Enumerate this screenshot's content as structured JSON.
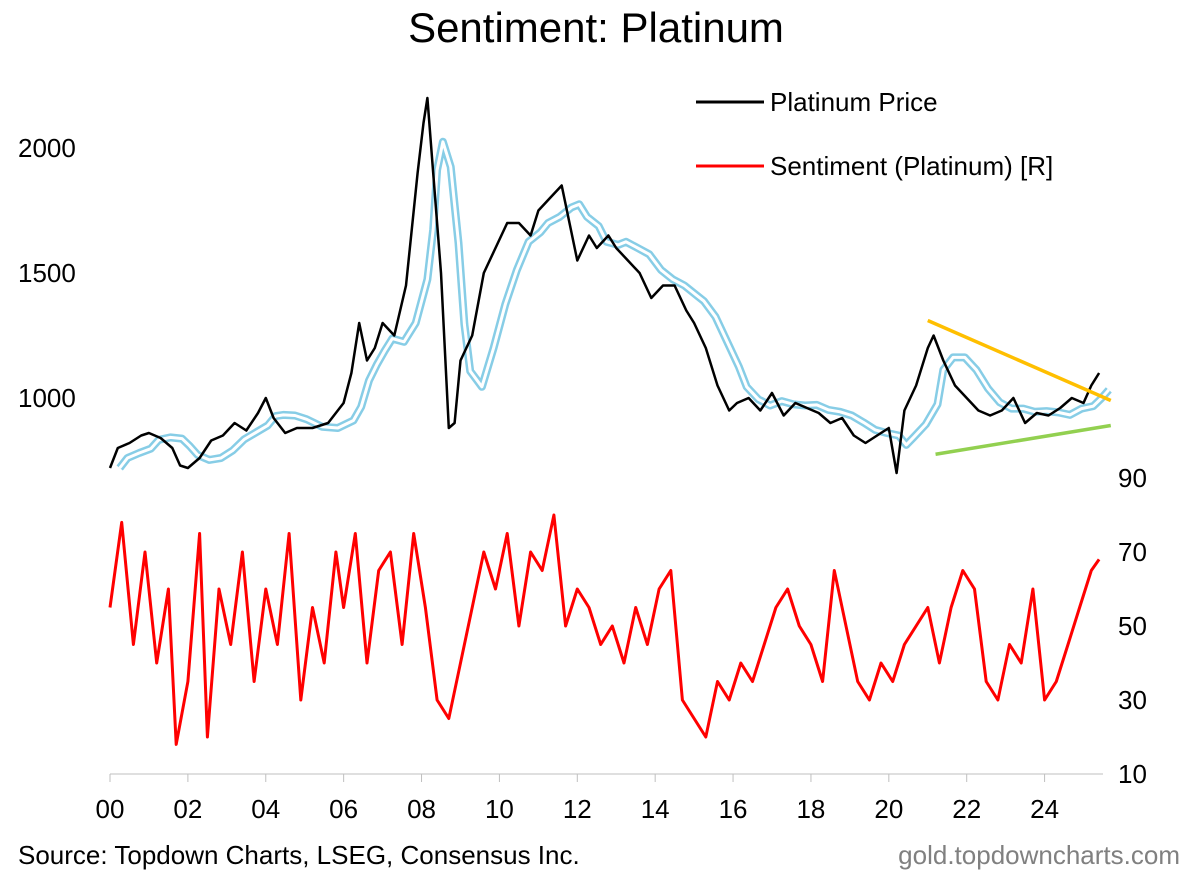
{
  "chart_data": {
    "type": "line",
    "title": "Sentiment: Platinum",
    "x_tick_labels": [
      "00",
      "02",
      "04",
      "06",
      "08",
      "10",
      "12",
      "14",
      "16",
      "18",
      "20",
      "22",
      "24"
    ],
    "x_range": [
      2000,
      2025.5
    ],
    "left_axis": {
      "ticks": [
        "1000",
        "1500",
        "2000"
      ],
      "tick_values": [
        1000,
        1500,
        2000
      ],
      "range": [
        400,
        2200
      ]
    },
    "right_axis": {
      "ticks": [
        "10",
        "30",
        "50",
        "70",
        "90"
      ],
      "tick_values": [
        10,
        30,
        50,
        70,
        90
      ],
      "range": [
        10,
        90
      ]
    },
    "legend": [
      "Platinum Price",
      "Sentiment (Platinum) [R]"
    ],
    "series": [
      {
        "name": "Platinum Price",
        "axis": "left",
        "color": "#000000",
        "x": [
          2000.0,
          2000.2,
          2000.5,
          2000.8,
          2001.0,
          2001.3,
          2001.6,
          2001.8,
          2002.0,
          2002.3,
          2002.6,
          2002.9,
          2003.2,
          2003.5,
          2003.8,
          2004.0,
          2004.2,
          2004.5,
          2004.8,
          2005.2,
          2005.6,
          2006.0,
          2006.2,
          2006.4,
          2006.6,
          2006.8,
          2007.0,
          2007.3,
          2007.6,
          2007.9,
          2008.05,
          2008.15,
          2008.3,
          2008.5,
          2008.7,
          2008.85,
          2009.0,
          2009.3,
          2009.6,
          2009.9,
          2010.2,
          2010.5,
          2010.8,
          2011.0,
          2011.3,
          2011.6,
          2011.8,
          2012.0,
          2012.3,
          2012.5,
          2012.8,
          2013.0,
          2013.3,
          2013.6,
          2013.9,
          2014.2,
          2014.5,
          2014.8,
          2015.0,
          2015.3,
          2015.6,
          2015.9,
          2016.1,
          2016.4,
          2016.7,
          2017.0,
          2017.3,
          2017.6,
          2017.9,
          2018.2,
          2018.5,
          2018.8,
          2019.1,
          2019.4,
          2019.7,
          2020.0,
          2020.2,
          2020.4,
          2020.7,
          2021.0,
          2021.15,
          2021.4,
          2021.7,
          2022.0,
          2022.3,
          2022.6,
          2022.9,
          2023.2,
          2023.5,
          2023.8,
          2024.1,
          2024.4,
          2024.7,
          2025.0,
          2025.2,
          2025.4
        ],
        "y": [
          720,
          800,
          820,
          850,
          860,
          840,
          800,
          730,
          720,
          760,
          830,
          850,
          900,
          870,
          940,
          1000,
          920,
          860,
          880,
          880,
          900,
          980,
          1100,
          1300,
          1150,
          1200,
          1300,
          1250,
          1450,
          1900,
          2100,
          2200,
          1900,
          1500,
          880,
          900,
          1150,
          1250,
          1500,
          1600,
          1700,
          1700,
          1650,
          1750,
          1800,
          1850,
          1700,
          1550,
          1650,
          1600,
          1650,
          1600,
          1550,
          1500,
          1400,
          1450,
          1450,
          1350,
          1300,
          1200,
          1050,
          950,
          980,
          1000,
          950,
          1020,
          930,
          980,
          960,
          940,
          900,
          920,
          850,
          820,
          850,
          880,
          700,
          950,
          1050,
          1200,
          1250,
          1150,
          1050,
          1000,
          950,
          930,
          950,
          1000,
          900,
          940,
          930,
          960,
          1000,
          980,
          1050,
          1100
        ]
      },
      {
        "name": "Sentiment (Platinum) [R]",
        "axis": "right",
        "color": "#ff0000",
        "x": [
          2000.0,
          2000.3,
          2000.6,
          2000.9,
          2001.2,
          2001.5,
          2001.7,
          2002.0,
          2002.3,
          2002.5,
          2002.8,
          2003.1,
          2003.4,
          2003.7,
          2004.0,
          2004.3,
          2004.6,
          2004.9,
          2005.2,
          2005.5,
          2005.8,
          2006.0,
          2006.3,
          2006.6,
          2006.9,
          2007.2,
          2007.5,
          2007.8,
          2008.1,
          2008.4,
          2008.7,
          2009.0,
          2009.3,
          2009.6,
          2009.9,
          2010.2,
          2010.5,
          2010.8,
          2011.1,
          2011.4,
          2011.7,
          2012.0,
          2012.3,
          2012.6,
          2012.9,
          2013.2,
          2013.5,
          2013.8,
          2014.1,
          2014.4,
          2014.7,
          2015.0,
          2015.3,
          2015.6,
          2015.9,
          2016.2,
          2016.5,
          2016.8,
          2017.1,
          2017.4,
          2017.7,
          2018.0,
          2018.3,
          2018.6,
          2018.9,
          2019.2,
          2019.5,
          2019.8,
          2020.1,
          2020.4,
          2020.7,
          2021.0,
          2021.3,
          2021.6,
          2021.9,
          2022.2,
          2022.5,
          2022.8,
          2023.1,
          2023.4,
          2023.7,
          2024.0,
          2024.3,
          2024.6,
          2024.9,
          2025.2,
          2025.4
        ],
        "y": [
          55,
          78,
          45,
          70,
          40,
          60,
          18,
          35,
          75,
          20,
          60,
          45,
          70,
          35,
          60,
          45,
          75,
          30,
          55,
          40,
          70,
          55,
          75,
          40,
          65,
          70,
          45,
          75,
          55,
          30,
          25,
          40,
          55,
          70,
          60,
          75,
          50,
          70,
          65,
          80,
          50,
          60,
          55,
          45,
          50,
          40,
          55,
          45,
          60,
          65,
          30,
          25,
          20,
          35,
          30,
          40,
          35,
          45,
          55,
          60,
          50,
          45,
          35,
          65,
          50,
          35,
          30,
          40,
          35,
          45,
          50,
          55,
          40,
          55,
          65,
          60,
          35,
          30,
          45,
          40,
          60,
          30,
          35,
          45,
          55,
          65,
          68
        ]
      }
    ],
    "trendlines": [
      {
        "name": "resistance",
        "color": "#ffbf00",
        "x": [
          2021.0,
          2025.7
        ],
        "y": [
          1310,
          990
        ]
      },
      {
        "name": "support",
        "color": "#92d050",
        "x": [
          2021.2,
          2025.7
        ],
        "y": [
          775,
          890
        ]
      }
    ],
    "moving_average_color": "#87cde6"
  },
  "source": "Source: Topdown Charts, LSEG, Consensus Inc.",
  "website": "gold.topdowncharts.com"
}
